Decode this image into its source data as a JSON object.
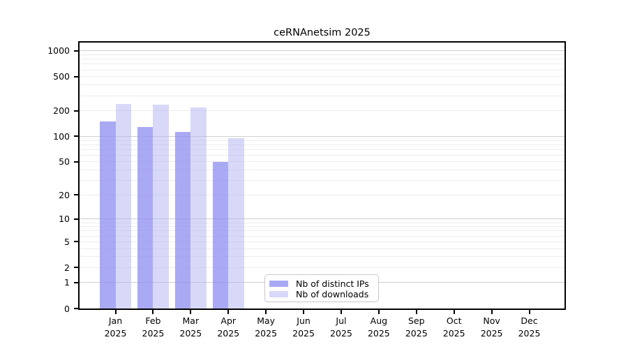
{
  "chart_data": {
    "type": "bar",
    "title": "ceRNAnetsim 2025",
    "scale": "log10(1+x)",
    "grid": true,
    "legend_position": "bottom-center",
    "categories": [
      "Jan",
      "Feb",
      "Mar",
      "Apr",
      "May",
      "Jun",
      "Jul",
      "Aug",
      "Sep",
      "Oct",
      "Nov",
      "Dec"
    ],
    "year": "2025",
    "series": [
      {
        "name": "Nb of distinct IPs",
        "color": "#8c8cf0",
        "alpha": 0.75,
        "values": [
          150,
          130,
          112,
          50,
          0,
          0,
          0,
          0,
          0,
          0,
          0,
          0
        ]
      },
      {
        "name": "Nb of downloads",
        "color": "#b1b1f3",
        "alpha": 0.5,
        "values": [
          241,
          236,
          219,
          96,
          0,
          0,
          0,
          0,
          0,
          0,
          0,
          0
        ]
      }
    ],
    "y_axis": {
      "ticks": [
        0,
        1,
        2,
        5,
        10,
        20,
        50,
        100,
        200,
        500,
        1000
      ],
      "major_gridlines": [
        1,
        10,
        100,
        1000
      ],
      "ylim_top": 1250
    },
    "colors": {
      "axis": "#000000",
      "grid_major": "#cfcfcf",
      "grid_minor": "#ededed",
      "background": "#ffffff"
    }
  }
}
